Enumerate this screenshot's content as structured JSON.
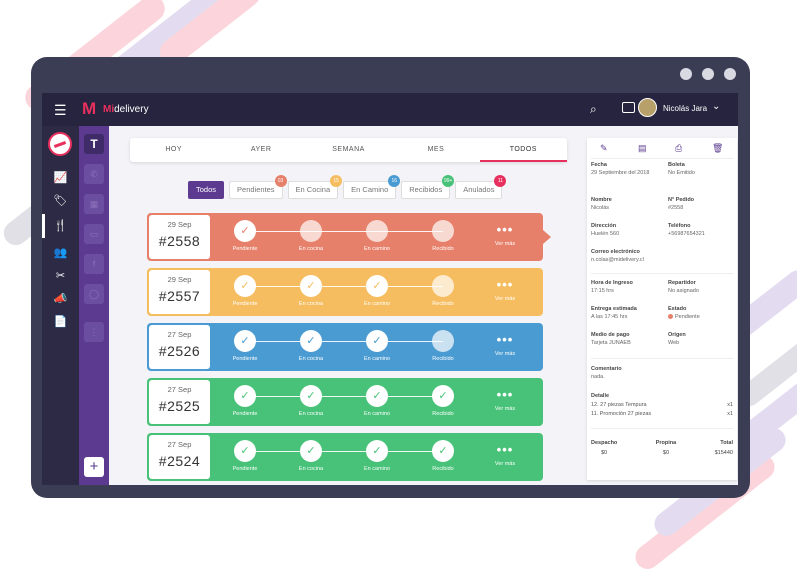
{
  "app": {
    "brand_prefix": "Mi",
    "brand_suffix": "delivery"
  },
  "user": {
    "name": "Nicolás Jara"
  },
  "tabs": [
    "HOY",
    "AYER",
    "SEMANA",
    "MES",
    "TODOS"
  ],
  "filters": [
    {
      "label": "Todos",
      "badge": ""
    },
    {
      "label": "Pendientes",
      "badge": "03"
    },
    {
      "label": "En Cocina",
      "badge": "15"
    },
    {
      "label": "En Camino",
      "badge": "16"
    },
    {
      "label": "Recibidos",
      "badge": "99+"
    },
    {
      "label": "Anulados",
      "badge": "11"
    }
  ],
  "badge_colors": [
    "#e7806a",
    "#f5bd5f",
    "#4a9bd1",
    "#47c278",
    "#e8305e"
  ],
  "step_labels": [
    "Pendiente",
    "En cocina",
    "En camino",
    "Recibido"
  ],
  "more_label": "Ver más",
  "orders": [
    {
      "date": "29 Sep",
      "number": "#2558",
      "color": "#e7806a",
      "done": 1
    },
    {
      "date": "29 Sep",
      "number": "#2557",
      "color": "#f5bd5f",
      "done": 3
    },
    {
      "date": "27 Sep",
      "number": "#2526",
      "color": "#4a9bd1",
      "done": 3
    },
    {
      "date": "27 Sep",
      "number": "#2525",
      "color": "#47c278",
      "done": 4
    },
    {
      "date": "27 Sep",
      "number": "#2524",
      "color": "#47c278",
      "done": 4
    }
  ],
  "detail": {
    "fecha_label": "Fecha",
    "fecha": "29 Septiembre del 2018",
    "boleta_label": "Boleta",
    "boleta": "No Emitido",
    "nombre_label": "Nombre",
    "nombre": "Nicolás",
    "pedido_label": "N° Pedido",
    "pedido": "#2558",
    "direccion_label": "Dirección",
    "direccion": "Huelén 560",
    "telefono_label": "Teléfono",
    "telefono": "+56987654321",
    "correo_label": "Correo electrónico",
    "correo": "n.colas@midelivery.cl",
    "ingreso_label": "Hora de Ingreso",
    "ingreso": "17:15 hrs",
    "repartidor_label": "Repartidor",
    "repartidor": "No asignado",
    "entrega_label": "Entrega estimada",
    "entrega": "A las 17:45 hrs",
    "estado_label": "Estado",
    "estado": "Pendiente",
    "pago_label": "Medio de pago",
    "pago": "Tarjeta JUNAEB",
    "origen_label": "Origen",
    "origen": "Web",
    "comentario_label": "Comentario",
    "comentario": "nada.",
    "detalle_label": "Detalle",
    "items": [
      {
        "name": "12. 27 piezas Tempura",
        "qty": "x1"
      },
      {
        "name": "11. Promoción 27 piezas",
        "qty": "x1"
      }
    ],
    "despacho_label": "Despacho",
    "despacho": "$0",
    "propina_label": "Propina",
    "propina": "$0",
    "total_label": "Total",
    "total": "$15440"
  }
}
